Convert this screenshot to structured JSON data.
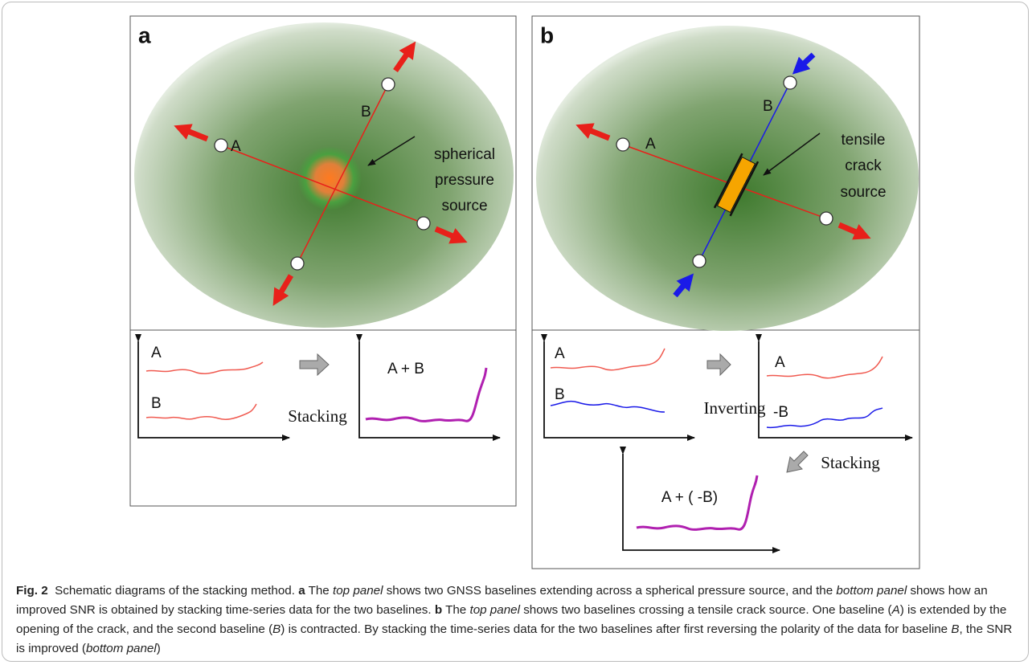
{
  "panel_a": {
    "label": "a",
    "baseline_a": "A",
    "baseline_b": "B",
    "source_label": [
      "spherical",
      "pressure",
      "source"
    ],
    "bottom": {
      "plot1_a": "A",
      "plot1_b": "B",
      "step": "Stacking",
      "plot2": "A + B"
    }
  },
  "panel_b": {
    "label": "b",
    "baseline_a": "A",
    "baseline_b": "B",
    "source_label": [
      "tensile",
      "crack",
      "source"
    ],
    "bottom": {
      "plot1_a": "A",
      "plot1_b": "B",
      "step1": "Inverting",
      "plot2_a": "A",
      "plot2_b": "-B",
      "step2": "Stacking",
      "plot3": "A + ( -B)"
    }
  },
  "caption": {
    "label": "Fig. 2",
    "runs": [
      "Schematic diagrams of the stacking method. ",
      "a",
      " The ",
      "top panel",
      " shows two GNSS baselines extending across a spherical pressure source, and the ",
      "bottom panel",
      " shows how an improved SNR is obtained by stacking time-series data for the two baselines. ",
      "b",
      " The ",
      "top panel",
      " shows two baselines crossing a tensile crack source. One baseline (",
      "A",
      ") is extended by the opening of the crack, and the second baseline (",
      "B",
      ") is contracted. By stacking the time-series data for the two baselines after first reversing the polarity of the data for baseline ",
      "B",
      ", the SNR is improved (",
      "bottom panel",
      ")"
    ]
  }
}
